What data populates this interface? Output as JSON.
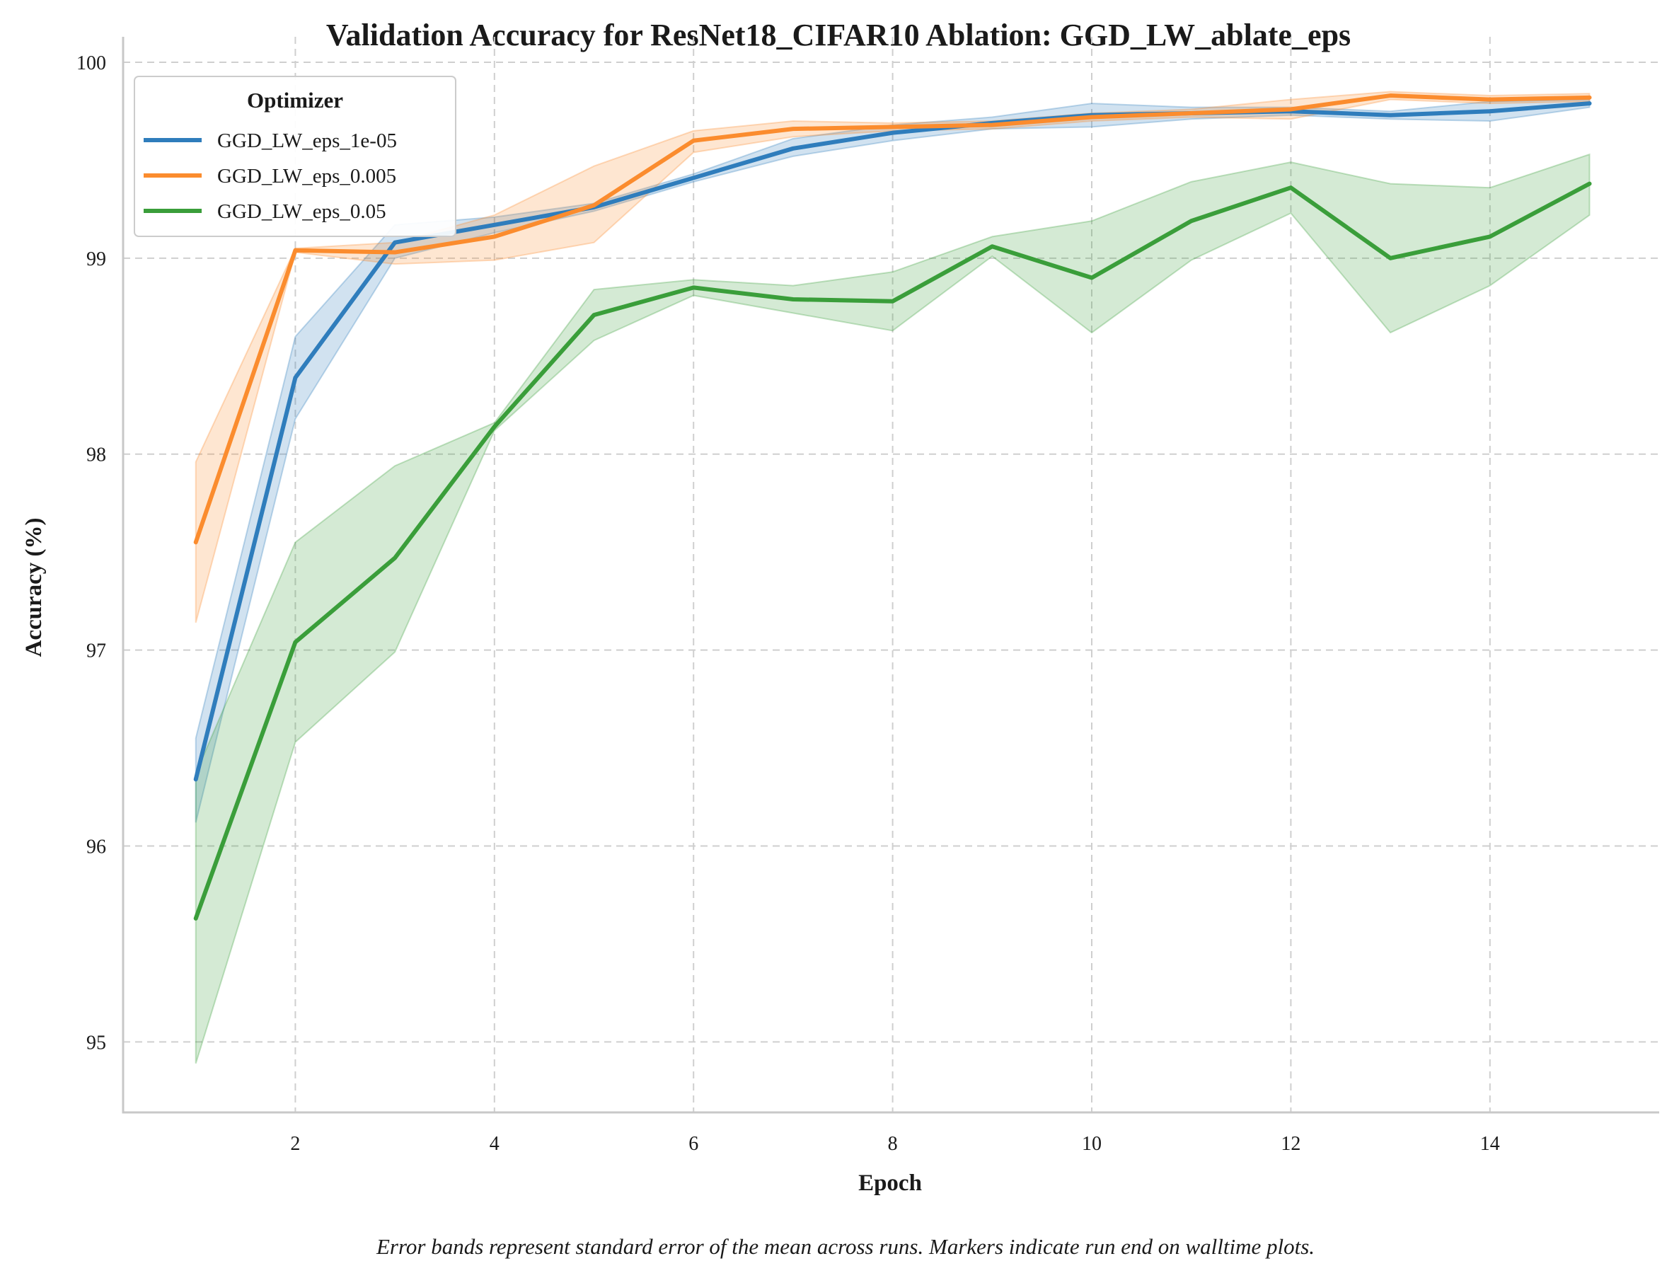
{
  "chart_data": {
    "type": "line",
    "title": "Validation Accuracy for ResNet18_CIFAR10 Ablation: GGD_LW_ablate_eps",
    "xlabel": "Epoch",
    "ylabel": "Accuracy (%)",
    "xlim": [
      0.27,
      15.7
    ],
    "ylim": [
      94.64,
      100.13
    ],
    "xticks": [
      2,
      4,
      6,
      8,
      10,
      12,
      14
    ],
    "yticks": [
      95,
      96,
      97,
      98,
      99,
      100
    ],
    "grid": true,
    "legend": {
      "title": "Optimizer",
      "placement": "top-left"
    },
    "caption": "Error bands represent standard error of the mean across runs. Markers indicate run end on walltime plots.",
    "x": [
      1,
      2,
      3,
      4,
      5,
      6,
      7,
      8,
      9,
      10,
      11,
      12,
      13,
      14,
      15
    ],
    "series": [
      {
        "name": "GGD_LW_eps_1e-05",
        "color": "#2f7dbc",
        "values": [
          96.34,
          98.39,
          99.08,
          99.17,
          99.26,
          99.41,
          99.56,
          99.64,
          99.69,
          99.73,
          99.74,
          99.75,
          99.73,
          99.75,
          99.79
        ],
        "lower": [
          96.12,
          98.18,
          99.0,
          99.13,
          99.24,
          99.39,
          99.52,
          99.6,
          99.66,
          99.67,
          99.71,
          99.73,
          99.71,
          99.7,
          99.77
        ],
        "upper": [
          96.55,
          98.6,
          99.17,
          99.21,
          99.28,
          99.43,
          99.61,
          99.68,
          99.72,
          99.79,
          99.77,
          99.77,
          99.75,
          99.8,
          99.81
        ]
      },
      {
        "name": "GGD_LW_eps_0.005",
        "color": "#fb8c2e",
        "values": [
          97.55,
          99.04,
          99.03,
          99.11,
          99.27,
          99.6,
          99.66,
          99.67,
          99.68,
          99.72,
          99.74,
          99.76,
          99.83,
          99.81,
          99.82
        ],
        "lower": [
          97.14,
          99.03,
          98.97,
          98.99,
          99.08,
          99.54,
          99.62,
          99.65,
          99.66,
          99.7,
          99.72,
          99.71,
          99.81,
          99.79,
          99.8
        ],
        "upper": [
          97.96,
          99.05,
          99.08,
          99.22,
          99.47,
          99.65,
          99.7,
          99.69,
          99.7,
          99.74,
          99.76,
          99.81,
          99.85,
          99.83,
          99.84
        ]
      },
      {
        "name": "GGD_LW_eps_0.05",
        "color": "#3a9e3a",
        "values": [
          95.63,
          97.04,
          97.47,
          98.14,
          98.71,
          98.85,
          98.79,
          98.78,
          99.06,
          98.9,
          99.19,
          99.36,
          99.0,
          99.11,
          99.38
        ],
        "lower": [
          94.89,
          96.53,
          96.99,
          98.12,
          98.58,
          98.81,
          98.72,
          98.63,
          99.01,
          98.62,
          98.99,
          99.23,
          98.62,
          98.86,
          99.22
        ],
        "upper": [
          96.37,
          97.55,
          97.94,
          98.16,
          98.84,
          98.89,
          98.86,
          98.93,
          99.11,
          99.19,
          99.39,
          99.49,
          99.38,
          99.36,
          99.53
        ]
      }
    ]
  }
}
